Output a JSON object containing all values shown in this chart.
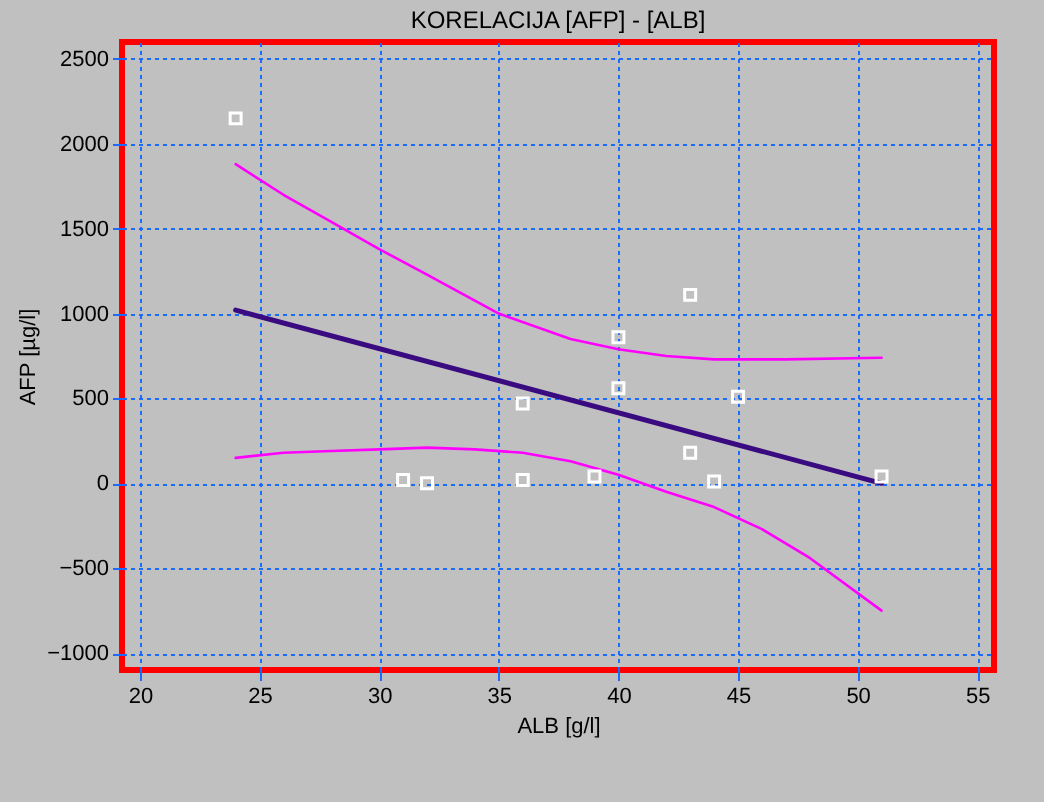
{
  "chart_data": {
    "type": "scatter",
    "title": "KORELACIJA [AFP] - [ALB]",
    "xlabel": "ALB [g/l]",
    "ylabel": "AFP  [µg/l]",
    "xlim": [
      19.25,
      55.7
    ],
    "xticks": [
      20,
      25,
      30,
      35,
      40,
      45,
      50,
      55
    ],
    "ylim": [
      -1100,
      2600
    ],
    "yticks": [
      -1000,
      -500,
      0,
      500,
      1000,
      1500,
      2000,
      2500
    ],
    "grid": true,
    "series": [
      {
        "type": "scatter",
        "color": "#ffffff",
        "marker": "square",
        "x": [
          24,
          31,
          32,
          36,
          36,
          39,
          40,
          40,
          43,
          43,
          44,
          45,
          51
        ],
        "values": [
          2150,
          20,
          0,
          470,
          20,
          40,
          860,
          560,
          1110,
          180,
          10,
          510,
          40
        ]
      },
      {
        "type": "line",
        "color": "#3a0a80",
        "x": [
          24,
          51
        ],
        "values": [
          1020,
          0
        ]
      },
      {
        "type": "line",
        "color": "#ff00ff",
        "x": [
          24,
          26,
          28,
          30,
          32,
          35,
          38,
          40,
          42,
          44,
          47,
          51
        ],
        "values": [
          1880,
          1700,
          1540,
          1380,
          1230,
          1000,
          850,
          790,
          750,
          730,
          730,
          740
        ]
      },
      {
        "type": "line",
        "color": "#ff00ff",
        "x": [
          24,
          26,
          28,
          30,
          32,
          34,
          36,
          38,
          40,
          42,
          44,
          46,
          48,
          51
        ],
        "values": [
          150,
          180,
          190,
          200,
          210,
          200,
          180,
          130,
          50,
          -50,
          -140,
          -270,
          -440,
          -750
        ]
      }
    ]
  }
}
